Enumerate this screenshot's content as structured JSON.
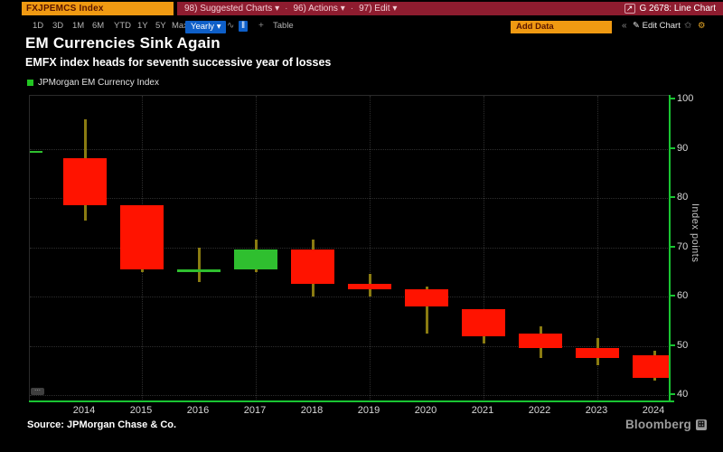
{
  "toolbar": {
    "security": "FXJPEMCS Index",
    "menu_items": [
      "98) Suggested Charts",
      "96) Actions",
      "97) Edit"
    ],
    "chart_ref": "G 2678: Line Chart"
  },
  "toolbar2": {
    "periods": [
      "1D",
      "3D",
      "1M",
      "6M",
      "YTD",
      "1Y",
      "5Y",
      "Max"
    ],
    "frequency": "Yearly",
    "table_label": "Table",
    "add_data_label": "Add Data",
    "edit_chart_label": "Edit Chart"
  },
  "icons": {
    "dropdown": "▾",
    "export": "↗",
    "line_chart": "∿",
    "candle_chart": "ǁ",
    "plus": "+",
    "collapse": "«",
    "edit": "✎",
    "star": "✩",
    "gear": "⚙",
    "dots": "⋯",
    "grid": "⊞",
    "separator": "·"
  },
  "header": {
    "title": "EM Currencies Sink Again",
    "subtitle": "EMFX index heads for seventh successive year of losses"
  },
  "legend": {
    "label": "JPMorgan EM Currency Index",
    "color": "#22c522"
  },
  "chart_data": {
    "type": "candlestick",
    "title": "EM Currencies Sink Again",
    "subtitle": "EMFX index heads for seventh successive year of losses",
    "series_name": "JPMorgan EM Currency Index",
    "ylabel": "Index points",
    "ylim": [
      40,
      100
    ],
    "yticks": [
      100,
      90,
      80,
      70,
      60,
      50,
      40
    ],
    "x_labels": [
      "2014",
      "2015",
      "2016",
      "2017",
      "2018",
      "2019",
      "2020",
      "2021",
      "2022",
      "2023",
      "2024"
    ],
    "prior_close_marker": 89.5,
    "candles": [
      {
        "year": "2014",
        "open": 88,
        "high": 96,
        "low": 75.5,
        "close": 78.5,
        "direction": "down"
      },
      {
        "year": "2015",
        "open": 78.5,
        "high": 78.5,
        "low": 65,
        "close": 65.5,
        "direction": "down"
      },
      {
        "year": "2016",
        "open": 65.5,
        "high": 70,
        "low": 63,
        "close": 65.5,
        "direction": "up"
      },
      {
        "year": "2017",
        "open": 65.5,
        "high": 71.5,
        "low": 65,
        "close": 69.5,
        "direction": "up"
      },
      {
        "year": "2018",
        "open": 69.5,
        "high": 71.5,
        "low": 60,
        "close": 62.5,
        "direction": "down"
      },
      {
        "year": "2019",
        "open": 62.5,
        "high": 64.5,
        "low": 60,
        "close": 61.5,
        "direction": "down"
      },
      {
        "year": "2020",
        "open": 61.5,
        "high": 62,
        "low": 52.5,
        "close": 58,
        "direction": "down"
      },
      {
        "year": "2021",
        "open": 57.5,
        "high": 57.5,
        "low": 50.5,
        "close": 52,
        "direction": "down"
      },
      {
        "year": "2022",
        "open": 52.5,
        "high": 54,
        "low": 47.5,
        "close": 49.5,
        "direction": "down"
      },
      {
        "year": "2023",
        "open": 49.5,
        "high": 51.5,
        "low": 46,
        "close": 47.5,
        "direction": "down"
      },
      {
        "year": "2024",
        "open": 48,
        "high": 49,
        "low": 43,
        "close": 43.5,
        "direction": "down"
      }
    ],
    "colors": {
      "up": "#2fbf2f",
      "down": "#ff1300",
      "wick": "#8a7b11",
      "axis": "#19c432",
      "grid": "#2e2e2e"
    },
    "grid": "dotted",
    "legend_position": "top-left",
    "yaxis_position": "right"
  },
  "footer": {
    "source": "Source: JPMorgan Chase & Co.",
    "brand": "Bloomberg"
  }
}
